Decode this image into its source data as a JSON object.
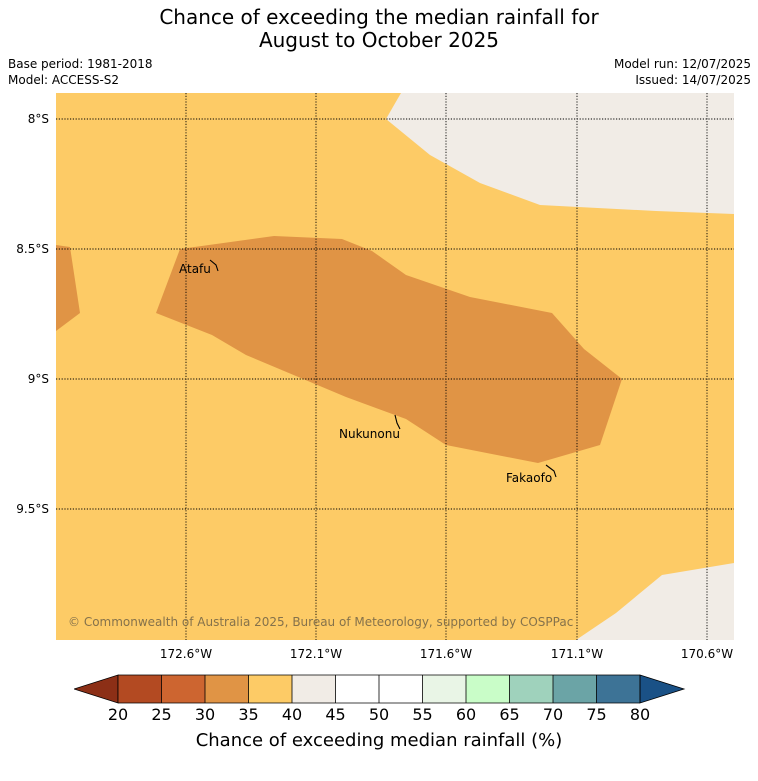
{
  "header": {
    "title_line1": "Chance of exceeding the median rainfall for",
    "title_line2": "August to October 2025",
    "base_period": "Base period: 1981-2018",
    "model": "Model: ACCESS-S2",
    "model_run": "Model run: 12/07/2025",
    "issued": "Issued: 14/07/2025"
  },
  "map": {
    "longitudes": [
      "172.6°W",
      "172.1°W",
      "171.6°W",
      "171.1°W",
      "170.6°W"
    ],
    "latitudes": [
      "8°S",
      "8.5°S",
      "9°S",
      "9.5°S"
    ],
    "places": [
      "Atafu",
      "Nukunonu",
      "Fakaofo"
    ],
    "copyright": "© Commonwealth of Australia 2025, Bureau of Meteorology, supported by COSPPac",
    "colors": {
      "band_30_35": "#e09445",
      "band_35_40": "#fdcb66",
      "band_40_45": "#f1ece6"
    }
  },
  "colorbar": {
    "ticks": [
      "20",
      "25",
      "30",
      "35",
      "40",
      "45",
      "50",
      "55",
      "60",
      "65",
      "70",
      "75",
      "80"
    ],
    "colors": [
      "#8c2f16",
      "#b34a22",
      "#cd6530",
      "#e09445",
      "#fdcb66",
      "#f1ece6",
      "#ffffff",
      "#ffffff",
      "#e9f5e6",
      "#c9fdc8",
      "#9fd2bc",
      "#6ba4a6",
      "#3d7396",
      "#1a5186"
    ],
    "label": "Chance of exceeding median rainfall (%)"
  }
}
